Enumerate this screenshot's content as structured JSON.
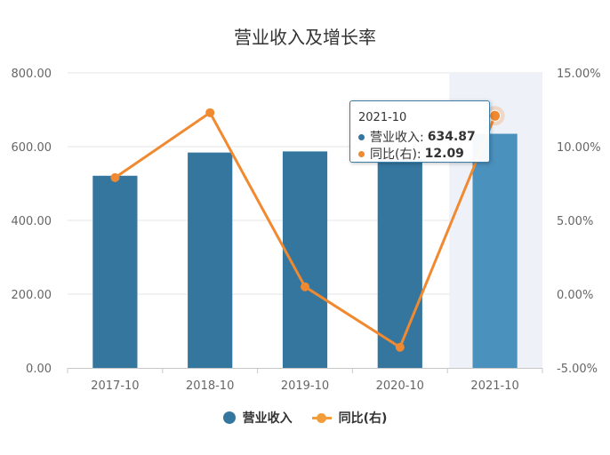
{
  "title": "营业收入及增长率",
  "colors": {
    "bar": "#35769f",
    "bar_highlight": "#4b91bd",
    "line": "#f0892f",
    "highlight_band": "#eef2f8",
    "grid": "#e6e6e6"
  },
  "legend": {
    "bar_label": "营业收入",
    "line_label": "同比(右)"
  },
  "tooltip": {
    "category": "2021-10",
    "bar_label": "营业收入:",
    "bar_value": "634.87",
    "line_label": "同比(右):",
    "line_value": "12.09"
  },
  "chart_data": {
    "type": "bar",
    "title": "营业收入及增长率",
    "categories": [
      "2017-10",
      "2018-10",
      "2019-10",
      "2020-10",
      "2021-10"
    ],
    "series": [
      {
        "name": "营业收入",
        "type": "bar",
        "axis": "left",
        "values": [
          521.0,
          584.0,
          587.0,
          566.0,
          634.87
        ]
      },
      {
        "name": "同比(右)",
        "type": "line",
        "axis": "right",
        "values": [
          7.9,
          12.3,
          0.5,
          -3.6,
          12.09
        ]
      }
    ],
    "y_left": {
      "ticks": [
        "0.00",
        "200.00",
        "400.00",
        "600.00",
        "800.00"
      ],
      "ylim": [
        0,
        800
      ]
    },
    "y_right": {
      "ticks": [
        "-5.00%",
        "0.00%",
        "5.00%",
        "10.00%",
        "15.00%"
      ],
      "ylim": [
        -5,
        15
      ]
    },
    "highlighted_category": "2021-10",
    "grid": true,
    "legend_position": "bottom"
  }
}
